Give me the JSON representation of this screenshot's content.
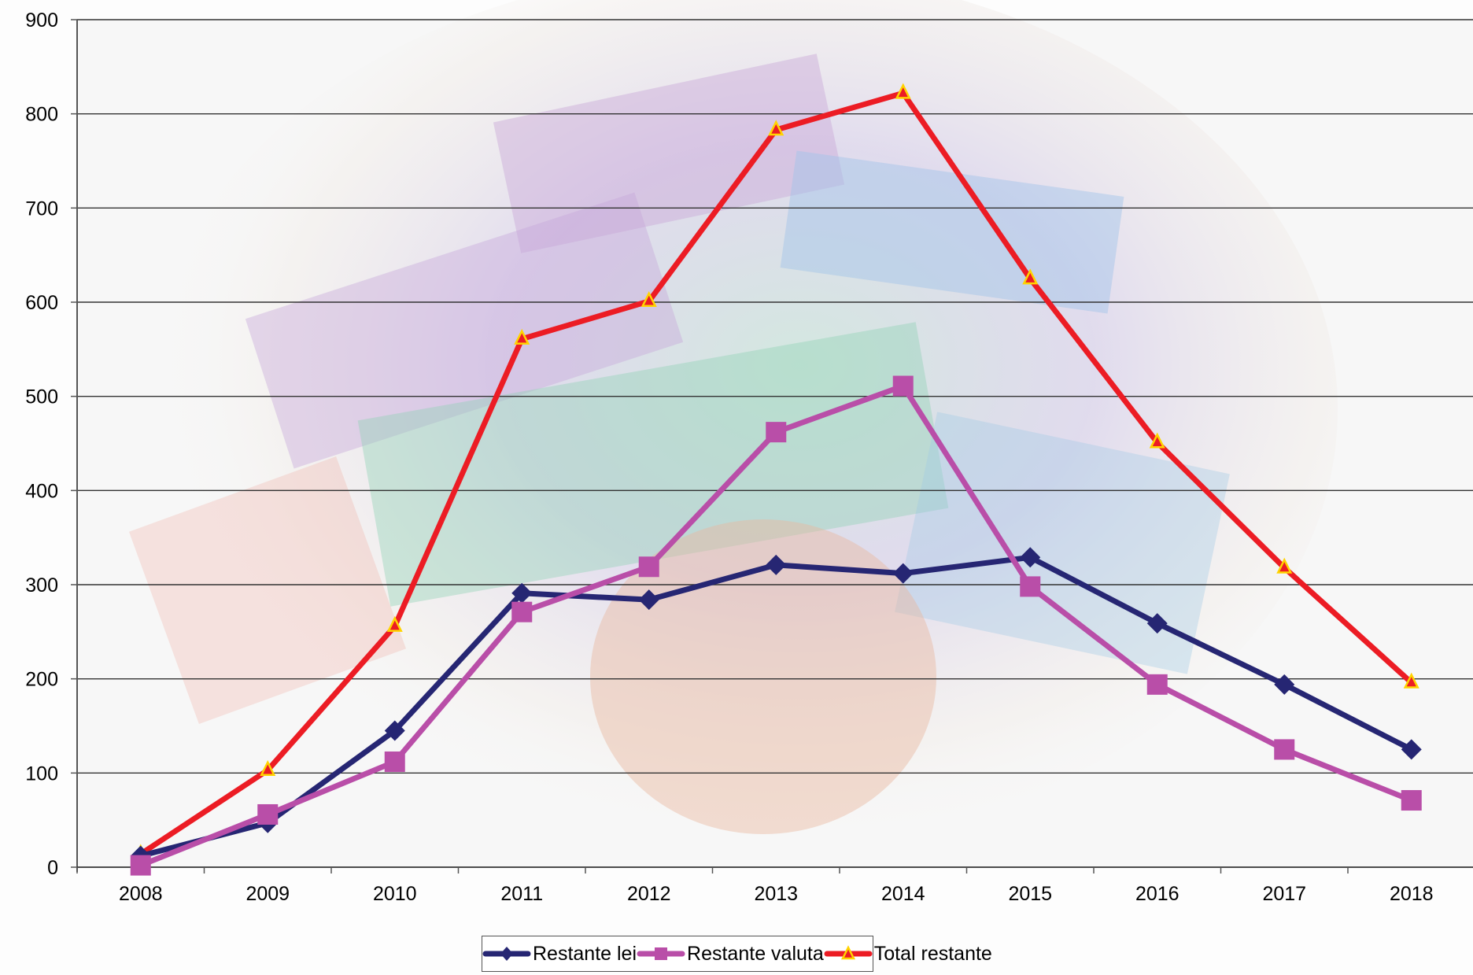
{
  "chart_data": {
    "type": "line",
    "title": "",
    "xlabel": "",
    "ylabel": "",
    "ylim": [
      0,
      900
    ],
    "yticks": [
      0,
      100,
      200,
      300,
      400,
      500,
      600,
      700,
      800,
      900
    ],
    "grid": true,
    "legend_position": "bottom",
    "background": "photo of euro banknotes held in a hand (faded)",
    "categories": [
      "2008",
      "2009",
      "2010",
      "2011",
      "2012",
      "2013",
      "2014",
      "2015",
      "2016",
      "2017",
      "2018"
    ],
    "series": [
      {
        "name": "Restante lei",
        "color": "#262673",
        "marker": "diamond",
        "values": [
          12,
          47,
          145,
          291,
          284,
          321,
          312,
          329,
          259,
          194,
          125
        ]
      },
      {
        "name": "Restante valuta",
        "color": "#b94ea8",
        "marker": "square",
        "values": [
          2,
          56,
          112,
          271,
          319,
          462,
          511,
          298,
          194,
          125,
          71
        ]
      },
      {
        "name": "Total restante",
        "color": "#ec1c24",
        "marker": "triangle",
        "marker_edge_color": "#ffd400",
        "values": [
          14,
          103,
          256,
          561,
          601,
          783,
          822,
          625,
          451,
          318,
          196
        ]
      }
    ]
  },
  "legend": {
    "items": [
      {
        "label": "Restante lei"
      },
      {
        "label": "Restante valuta"
      },
      {
        "label": "Total restante"
      }
    ]
  }
}
